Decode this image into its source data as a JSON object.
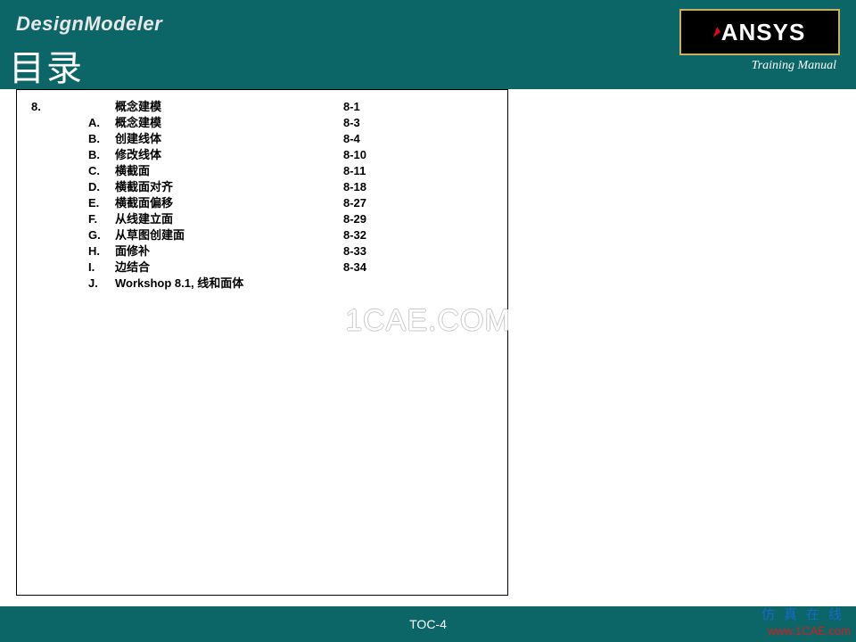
{
  "header": {
    "app_title": "DesignModeler",
    "page_title": "目录",
    "logo_text": "ANSYS",
    "manual_label": "Training Manual",
    "background_color": "#0c6668",
    "logo_bg": "#000000",
    "logo_border": "#c7b257",
    "logo_text_color": "#ffffff"
  },
  "toc": {
    "font_size": 13,
    "font_weight": "bold",
    "border_color": "#000000",
    "chapter_num": "8.",
    "chapter_title": "概念建模",
    "chapter_page": "8-1",
    "items": [
      {
        "letter": "A.",
        "topic": "概念建模",
        "page": "8-3"
      },
      {
        "letter": "B.",
        "topic": "创建线体",
        "page": "8-4"
      },
      {
        "letter": "B.",
        "topic": "修改线体",
        "page": "8-10"
      },
      {
        "letter": "C.",
        "topic": "横截面",
        "page": "8-11"
      },
      {
        "letter": "D.",
        "topic": "横截面对齐",
        "page": "8-18"
      },
      {
        "letter": "E.",
        "topic": "横截面偏移",
        "page": "8-27"
      },
      {
        "letter": "F.",
        "topic": "从线建立面",
        "page": "8-29"
      },
      {
        "letter": "G.",
        "topic": "从草图创建面",
        "page": "8-32"
      },
      {
        "letter": "H.",
        "topic": "面修补",
        "page": "8-33"
      },
      {
        "letter": "I.",
        "topic": "边结合",
        "page": "8-34"
      },
      {
        "letter": "J.",
        "topic": "Workshop 8.1, 线和面体",
        "page": ""
      }
    ]
  },
  "watermark": "1CAE.COM",
  "footer": {
    "page_label": "TOC-4",
    "background_color": "#0c6668"
  },
  "corner": {
    "cn_text": "仿真在线",
    "url": "www.1CAE.com",
    "cn_color": "#1769c7",
    "url_color": "#d81a1a"
  }
}
